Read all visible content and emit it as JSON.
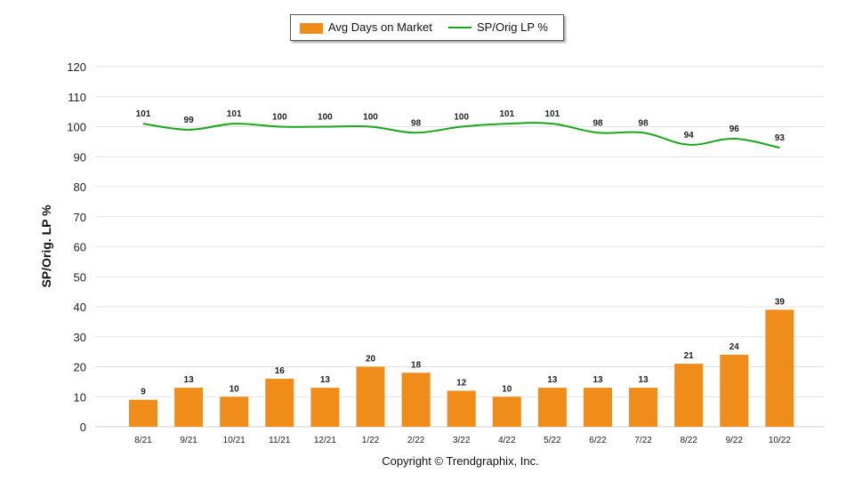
{
  "chart_data": {
    "type": "bar+line",
    "categories": [
      "8/21",
      "9/21",
      "10/21",
      "11/21",
      "12/21",
      "1/22",
      "2/22",
      "3/22",
      "4/22",
      "5/22",
      "6/22",
      "7/22",
      "8/22",
      "9/22",
      "10/22"
    ],
    "series": [
      {
        "name": "Avg Days on Market",
        "type": "bar",
        "color": "#F08C1A",
        "values": [
          9,
          13,
          10,
          16,
          13,
          20,
          18,
          12,
          10,
          13,
          13,
          13,
          21,
          24,
          39
        ]
      },
      {
        "name": "SP/Orig LP %",
        "type": "line",
        "color": "#1AA61A",
        "values": [
          101,
          99,
          101,
          100,
          100,
          100,
          98,
          100,
          101,
          101,
          98,
          98,
          94,
          96,
          93
        ]
      }
    ],
    "ylabel": "SP/Orig. LP %",
    "ylim": [
      0,
      120
    ],
    "yticks": [
      0,
      10,
      20,
      30,
      40,
      50,
      60,
      70,
      80,
      90,
      100,
      110,
      120
    ],
    "grid": true,
    "legend_position": "top-center"
  },
  "legend": {
    "bar_label": "Avg Days on Market",
    "line_label": "SP/Orig LP %"
  },
  "footer": {
    "copyright": "Copyright © Trendgraphix, Inc."
  }
}
